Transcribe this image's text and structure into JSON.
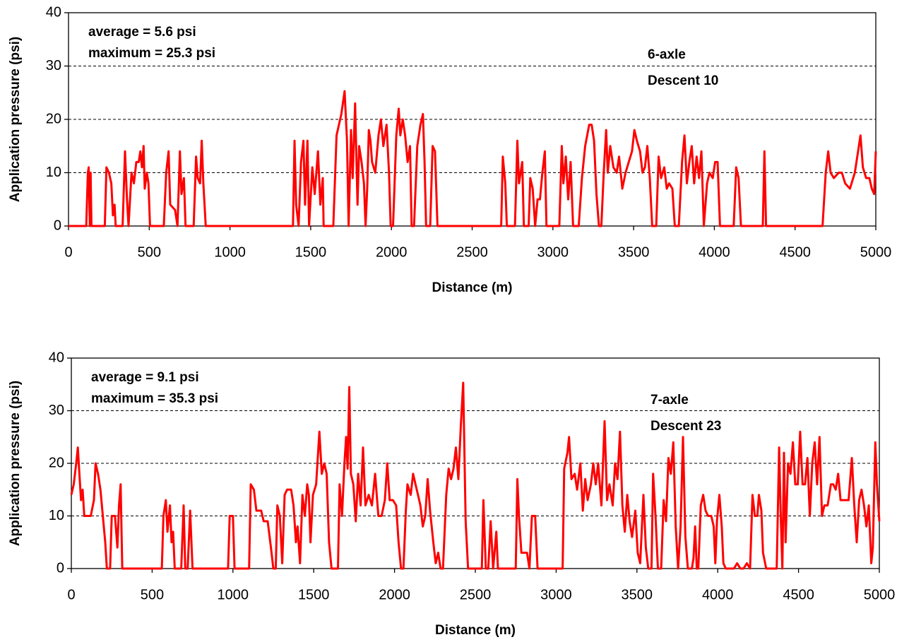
{
  "chart_data": [
    {
      "type": "line",
      "color": "#ff0000",
      "xlabel": "Distance (m)",
      "ylabel": "Application pressure (psi)",
      "annotations": [
        "average = 5.6 psi",
        "maximum = 25.3 psi",
        "6-axle",
        "Descent 10"
      ],
      "xlim": [
        0,
        5000
      ],
      "xticks": [
        0,
        500,
        1000,
        1500,
        2000,
        2500,
        3000,
        3500,
        4000,
        4500,
        5000
      ],
      "ylim": [
        0,
        40
      ],
      "yticks": [
        0,
        10,
        20,
        30,
        40
      ],
      "grid": true,
      "x": [
        0,
        110,
        120,
        125,
        132,
        137,
        142,
        225,
        235,
        250,
        265,
        275,
        285,
        292,
        335,
        350,
        362,
        372,
        390,
        405,
        420,
        435,
        445,
        455,
        465,
        472,
        485,
        495,
        505,
        590,
        605,
        620,
        630,
        660,
        675,
        690,
        700,
        715,
        725,
        775,
        790,
        800,
        815,
        825,
        835,
        850,
        1390,
        1400,
        1410,
        1425,
        1440,
        1455,
        1465,
        1480,
        1490,
        1510,
        1525,
        1545,
        1560,
        1575,
        1580,
        1640,
        1660,
        1690,
        1710,
        1725,
        1735,
        1750,
        1760,
        1775,
        1790,
        1800,
        1815,
        1830,
        1840,
        1850,
        1860,
        1870,
        1880,
        1900,
        1920,
        1935,
        1950,
        1970,
        1985,
        1995,
        2010,
        2030,
        2045,
        2055,
        2070,
        2085,
        2100,
        2115,
        2125,
        2140,
        2160,
        2180,
        2195,
        2205,
        2215,
        2240,
        2255,
        2270,
        2285,
        2680,
        2690,
        2705,
        2715,
        2765,
        2780,
        2790,
        2810,
        2820,
        2850,
        2860,
        2875,
        2890,
        2905,
        2920,
        2935,
        2950,
        2960,
        3040,
        3055,
        3065,
        3080,
        3095,
        3110,
        3125,
        3160,
        3180,
        3200,
        3225,
        3240,
        3255,
        3270,
        3285,
        3300,
        3315,
        3330,
        3340,
        3355,
        3375,
        3395,
        3410,
        3430,
        3450,
        3470,
        3490,
        3505,
        3520,
        3540,
        3555,
        3570,
        3585,
        3600,
        3615,
        3640,
        3655,
        3670,
        3690,
        3705,
        3720,
        3740,
        3755,
        3780,
        3800,
        3815,
        3830,
        3845,
        3860,
        3875,
        3890,
        3905,
        3920,
        3935,
        3955,
        3970,
        3990,
        4005,
        4020,
        4035,
        4120,
        4135,
        4150,
        4165,
        4300,
        4310,
        4320,
        4670,
        4690,
        4705,
        4720,
        4740,
        4770,
        4790,
        4810,
        4840,
        4870,
        4890,
        4905,
        4920,
        4940,
        4960,
        4975,
        4990,
        5000
      ],
      "values": [
        0,
        0,
        10,
        11,
        0,
        10,
        0,
        0,
        11,
        10,
        8,
        2,
        4,
        0,
        0,
        14,
        5,
        0,
        10,
        8,
        12,
        12,
        14,
        11,
        15,
        7,
        10,
        8,
        0,
        0,
        10,
        14,
        4,
        3,
        0,
        14,
        6,
        9,
        0,
        0,
        13,
        9,
        8,
        16,
        8,
        0,
        0,
        16,
        4,
        0,
        12,
        16,
        4,
        16,
        0,
        11,
        6,
        14,
        4,
        9,
        0,
        0,
        17,
        21,
        25.3,
        16,
        0,
        18,
        9,
        23,
        4,
        15,
        12,
        8,
        0,
        7,
        18,
        16,
        12,
        10,
        17,
        20,
        15,
        19,
        10,
        0,
        0,
        17,
        22,
        17,
        20,
        17,
        12,
        15,
        0,
        0,
        15,
        19,
        21,
        12,
        0,
        0,
        15,
        14,
        0,
        0,
        13,
        8,
        0,
        0,
        16,
        8,
        12,
        0,
        0,
        9,
        7,
        0,
        5,
        5,
        10,
        14,
        0,
        0,
        15,
        8,
        13,
        5,
        12,
        0,
        0,
        9,
        15,
        19,
        19,
        16,
        6,
        0,
        0,
        10,
        18,
        10,
        15,
        11,
        10,
        13,
        7,
        10,
        12,
        14,
        18,
        16,
        14,
        10,
        11,
        15,
        9,
        0,
        0,
        13,
        9,
        11,
        7,
        8,
        7,
        0,
        0,
        12,
        17,
        8,
        12,
        15,
        8,
        13,
        9,
        14,
        0,
        8,
        10,
        9,
        12,
        12,
        0,
        0,
        11,
        9,
        0,
        0,
        14,
        0,
        0,
        10,
        14,
        10,
        9,
        10,
        10,
        8,
        7,
        10,
        14,
        17,
        11,
        9,
        9,
        7,
        6,
        14
      ]
    },
    {
      "type": "line",
      "color": "#ff0000",
      "xlabel": "Distance (m)",
      "ylabel": "Application pressure (psi)",
      "annotations": [
        "average = 9.1 psi",
        "maximum = 35.3 psi",
        "7-axle",
        "Descent 23"
      ],
      "xlim": [
        0,
        5000
      ],
      "xticks": [
        0,
        500,
        1000,
        1500,
        2000,
        2500,
        3000,
        3500,
        4000,
        4500,
        5000
      ],
      "ylim": [
        0,
        40
      ],
      "yticks": [
        0,
        10,
        20,
        30,
        40
      ],
      "grid": true,
      "x": [
        0,
        15,
        30,
        40,
        50,
        60,
        70,
        80,
        100,
        120,
        140,
        150,
        165,
        180,
        195,
        210,
        220,
        240,
        250,
        270,
        285,
        295,
        305,
        315,
        330,
        560,
        570,
        585,
        595,
        610,
        620,
        630,
        640,
        680,
        695,
        705,
        720,
        735,
        750,
        970,
        980,
        1000,
        1010,
        1100,
        1110,
        1130,
        1145,
        1175,
        1190,
        1215,
        1235,
        1250,
        1265,
        1275,
        1290,
        1305,
        1320,
        1335,
        1360,
        1375,
        1390,
        1400,
        1415,
        1430,
        1445,
        1460,
        1470,
        1480,
        1495,
        1515,
        1535,
        1550,
        1565,
        1580,
        1595,
        1610,
        1650,
        1660,
        1675,
        1690,
        1700,
        1710,
        1720,
        1730,
        1745,
        1760,
        1775,
        1790,
        1805,
        1820,
        1840,
        1860,
        1880,
        1900,
        1920,
        1940,
        1955,
        1970,
        1990,
        2010,
        2025,
        2040,
        2055,
        2070,
        2080,
        2100,
        2115,
        2130,
        2145,
        2160,
        2175,
        2190,
        2205,
        2220,
        2240,
        2255,
        2270,
        2285,
        2300,
        2320,
        2335,
        2350,
        2365,
        2380,
        2395,
        2410,
        2425,
        2440,
        2455,
        2540,
        2550,
        2565,
        2580,
        2595,
        2610,
        2630,
        2640,
        2750,
        2760,
        2770,
        2785,
        2820,
        2835,
        2850,
        2870,
        2885,
        3040,
        3050,
        3070,
        3080,
        3095,
        3115,
        3130,
        3150,
        3165,
        3180,
        3195,
        3215,
        3230,
        3245,
        3260,
        3280,
        3300,
        3315,
        3330,
        3350,
        3365,
        3380,
        3395,
        3410,
        3425,
        3440,
        3455,
        3470,
        3490,
        3505,
        3520,
        3540,
        3555,
        3570,
        3590,
        3600,
        3615,
        3630,
        3650,
        3665,
        3680,
        3695,
        3710,
        3725,
        3740,
        3755,
        3770,
        3785,
        3800,
        3815,
        3840,
        3850,
        3860,
        3870,
        3880,
        3895,
        3910,
        3925,
        3940,
        3960,
        3975,
        3985,
        3995,
        4010,
        4025,
        4035,
        4050,
        4100,
        4120,
        4140,
        4160,
        4180,
        4200,
        4215,
        4230,
        4245,
        4255,
        4270,
        4280,
        4300,
        4350,
        4365,
        4380,
        4390,
        4400,
        4410,
        4420,
        4435,
        4450,
        4465,
        4480,
        4495,
        4510,
        4525,
        4540,
        4555,
        4570,
        4585,
        4600,
        4615,
        4630,
        4645,
        4660,
        4680,
        4700,
        4715,
        4730,
        4745,
        4760,
        4790,
        4810,
        4830,
        4845,
        4860,
        4875,
        4890,
        4905,
        4920,
        4935,
        4950,
        4960,
        4975,
        4985,
        5000
      ],
      "values": [
        14,
        16,
        20,
        23,
        18,
        13,
        15,
        10,
        10,
        10,
        13,
        20,
        18,
        15,
        10,
        5,
        0,
        0,
        10,
        10,
        4,
        12,
        16,
        0,
        0,
        0,
        10,
        13,
        7,
        12,
        5,
        7,
        0,
        0,
        12,
        0,
        0,
        11,
        0,
        0,
        10,
        10,
        0,
        0,
        16,
        15,
        11,
        11,
        9,
        9,
        4,
        0,
        0,
        12,
        10,
        1,
        14,
        15,
        15,
        12,
        5,
        8,
        1,
        14,
        10,
        16,
        14,
        5,
        14,
        16,
        26,
        18,
        20,
        18,
        5,
        0,
        0,
        16,
        10,
        20,
        25,
        19,
        34.5,
        18,
        16,
        9,
        18,
        12,
        23,
        12,
        14,
        12,
        18,
        10,
        10,
        13,
        20,
        13,
        13,
        12,
        5,
        0,
        0,
        11,
        16,
        14,
        18,
        16,
        14,
        12,
        8,
        10,
        17,
        11,
        5,
        1,
        3,
        0,
        0,
        14,
        19,
        17,
        19,
        23,
        17,
        27,
        35.3,
        9,
        0,
        0,
        13,
        0,
        0,
        9,
        0,
        7,
        0,
        0,
        17,
        10,
        3,
        3,
        0,
        10,
        10,
        0,
        0,
        19,
        22,
        25,
        17,
        18,
        15,
        20,
        11,
        17,
        13,
        16,
        20,
        16,
        20,
        12,
        28,
        13,
        16,
        12,
        20,
        17,
        26,
        12,
        7,
        14,
        9,
        6,
        11,
        3,
        1,
        14,
        4,
        0,
        0,
        18,
        10,
        0,
        0,
        13,
        9,
        21,
        18,
        24,
        8,
        0,
        8,
        25,
        6,
        0,
        0,
        2,
        8,
        0,
        0,
        12,
        14,
        11,
        10,
        10,
        8,
        1,
        9,
        14,
        8,
        1,
        0,
        0,
        1,
        0,
        0,
        1,
        0,
        14,
        10,
        10,
        14,
        11,
        3,
        0,
        0,
        0,
        23,
        10,
        0,
        22,
        5,
        20,
        18,
        24,
        16,
        16,
        26,
        16,
        16,
        21,
        10,
        20,
        24,
        16,
        25,
        10,
        12,
        12,
        16,
        16,
        15,
        18,
        13,
        13,
        13,
        21,
        12,
        5,
        13,
        15,
        12,
        8,
        12,
        1,
        4,
        24,
        16,
        9
      ]
    }
  ]
}
